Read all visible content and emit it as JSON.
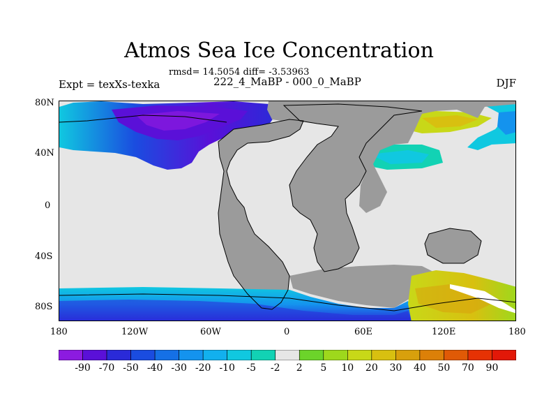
{
  "title": "Atmos Sea Ice Concentration",
  "stats_line": "rmsd= 14.5054 diff= -3.53963",
  "experiment": "Expt = texXs-texka",
  "period": "222_4_MaBP - 000_0_MaBP",
  "season": "DJF",
  "lat_ticks": [
    "80N",
    "40N",
    "0",
    "40S",
    "80S"
  ],
  "lon_ticks": [
    "180",
    "120W",
    "60W",
    "0",
    "60E",
    "120E",
    "180"
  ],
  "colorbar": {
    "labels": [
      "-90",
      "-70",
      "-50",
      "-40",
      "-30",
      "-20",
      "-10",
      "-5",
      "-2",
      "2",
      "5",
      "10",
      "20",
      "30",
      "40",
      "50",
      "70",
      "90"
    ],
    "colors": [
      "#8c1be0",
      "#5a10d8",
      "#2a2ad8",
      "#1a4ce0",
      "#1570e6",
      "#1493ee",
      "#12b0ee",
      "#10c8e0",
      "#12d2b4",
      "#e6e6e6",
      "#6cd42a",
      "#9ed81c",
      "#c8d818",
      "#d8c010",
      "#d8a00c",
      "#dc8008",
      "#e05a06",
      "#e63204",
      "#e21808"
    ]
  },
  "map_colors": {
    "ocean": "#e6e6e6",
    "land": "#9b9b9b",
    "coast": "#000000"
  }
}
